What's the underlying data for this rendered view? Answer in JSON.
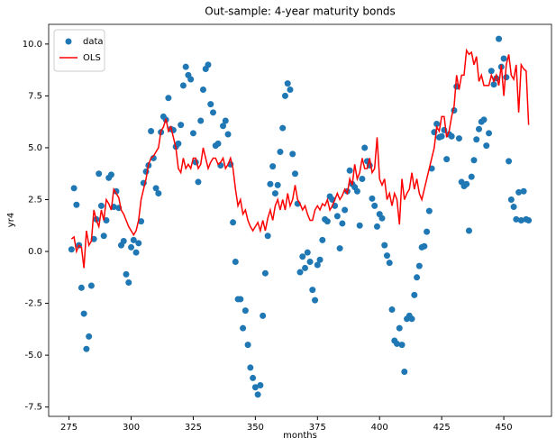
{
  "chart_data": {
    "type": "line",
    "title": "Out-sample: 4-year maturity bonds",
    "x_label": "months",
    "y_label": "yr4",
    "x": [
      276,
      277,
      278,
      279,
      280,
      281,
      282,
      283,
      284,
      285,
      286,
      287,
      288,
      289,
      290,
      291,
      292,
      293,
      294,
      295,
      296,
      297,
      298,
      299,
      300,
      301,
      302,
      303,
      304,
      305,
      306,
      307,
      308,
      309,
      310,
      311,
      312,
      313,
      314,
      315,
      316,
      317,
      318,
      319,
      320,
      321,
      322,
      323,
      324,
      325,
      326,
      327,
      328,
      329,
      330,
      331,
      332,
      333,
      334,
      335,
      336,
      337,
      338,
      339,
      340,
      341,
      342,
      343,
      344,
      345,
      346,
      347,
      348,
      349,
      350,
      351,
      352,
      353,
      354,
      355,
      356,
      357,
      358,
      359,
      360,
      361,
      362,
      363,
      364,
      365,
      366,
      367,
      368,
      369,
      370,
      371,
      372,
      373,
      374,
      375,
      376,
      377,
      378,
      379,
      380,
      381,
      382,
      383,
      384,
      385,
      386,
      387,
      388,
      389,
      390,
      391,
      392,
      393,
      394,
      395,
      396,
      397,
      398,
      399,
      400,
      401,
      402,
      403,
      404,
      405,
      406,
      407,
      408,
      409,
      410,
      411,
      412,
      413,
      414,
      415,
      416,
      417,
      418,
      419,
      420,
      421,
      422,
      423,
      424,
      425,
      426,
      427,
      428,
      429,
      430,
      431,
      432,
      433,
      434,
      435,
      436,
      437,
      438,
      439,
      440,
      441,
      442,
      443,
      444,
      445,
      446,
      447,
      448,
      449,
      450,
      451,
      452,
      453,
      454,
      455,
      456,
      457,
      458,
      459,
      460
    ],
    "series": [
      {
        "name": "data",
        "color": "#1f77b4",
        "style": "markers",
        "values": [
          0.1,
          3.05,
          2.25,
          0.3,
          -1.75,
          -3.0,
          -4.7,
          -4.1,
          -1.65,
          0.6,
          1.55,
          3.75,
          2.2,
          0.75,
          1.5,
          3.55,
          3.7,
          2.15,
          2.9,
          2.1,
          0.3,
          0.5,
          -1.1,
          -1.5,
          0.2,
          0.55,
          -0.05,
          0.4,
          1.45,
          3.3,
          3.85,
          4.15,
          5.8,
          4.5,
          3.05,
          2.8,
          5.75,
          6.5,
          6.35,
          7.4,
          5.9,
          5.85,
          5.05,
          5.2,
          6.1,
          8.0,
          8.9,
          8.5,
          8.3,
          5.7,
          4.3,
          3.35,
          6.3,
          7.8,
          8.8,
          9.0,
          7.1,
          6.7,
          5.1,
          5.2,
          4.15,
          6.05,
          6.3,
          5.65,
          4.2,
          1.4,
          -0.5,
          -2.3,
          -2.3,
          -3.7,
          -2.85,
          -4.5,
          -5.6,
          -6.1,
          -6.55,
          -6.9,
          -6.45,
          -3.1,
          -1.05,
          0.75,
          3.25,
          4.1,
          2.8,
          3.2,
          4.8,
          5.95,
          7.5,
          8.1,
          7.8,
          4.7,
          3.75,
          2.3,
          -1.0,
          -0.25,
          -0.8,
          -0.05,
          -0.5,
          -1.85,
          -2.35,
          -0.65,
          -0.4,
          0.55,
          1.55,
          1.45,
          2.65,
          2.5,
          2.2,
          1.7,
          0.15,
          1.35,
          2.0,
          2.9,
          3.9,
          3.25,
          3.1,
          2.9,
          1.25,
          3.5,
          5.0,
          4.35,
          4.15,
          2.55,
          2.2,
          1.2,
          1.8,
          1.6,
          0.3,
          -0.2,
          -0.55,
          -2.8,
          -4.3,
          -4.45,
          -3.7,
          -4.5,
          -5.8,
          -3.25,
          -3.1,
          -3.25,
          -2.1,
          -1.25,
          -0.7,
          0.2,
          0.25,
          0.95,
          1.95,
          4.0,
          5.75,
          6.15,
          5.5,
          5.55,
          5.85,
          4.45,
          5.65,
          5.55,
          6.8,
          7.95,
          5.45,
          3.35,
          3.15,
          3.25,
          1.0,
          3.6,
          4.4,
          5.4,
          5.9,
          6.25,
          6.35,
          5.1,
          5.7,
          8.7,
          8.05,
          8.35,
          10.25,
          8.9,
          9.3,
          8.4,
          4.35,
          2.5,
          2.15,
          1.55,
          2.85,
          1.5,
          2.9,
          1.55,
          1.5
        ]
      },
      {
        "name": "OLS",
        "color": "#ff0000",
        "style": "line",
        "values": [
          0.6,
          0.7,
          0.0,
          0.3,
          0.2,
          -0.8,
          1.0,
          0.3,
          0.5,
          2.0,
          1.5,
          1.2,
          2.0,
          1.5,
          2.5,
          2.3,
          2.0,
          3.0,
          2.8,
          2.6,
          2.0,
          1.8,
          1.5,
          1.2,
          1.0,
          0.8,
          1.0,
          1.5,
          2.5,
          3.0,
          3.5,
          4.2,
          4.5,
          4.6,
          4.8,
          5.0,
          5.8,
          6.0,
          6.4,
          5.8,
          6.0,
          5.5,
          5.0,
          4.0,
          3.8,
          4.5,
          4.0,
          4.2,
          4.0,
          4.5,
          4.5,
          4.0,
          4.2,
          5.0,
          4.5,
          4.0,
          4.3,
          4.5,
          4.5,
          4.2,
          4.3,
          4.5,
          4.0,
          4.2,
          4.5,
          4.0,
          3.0,
          2.2,
          2.5,
          1.8,
          2.0,
          1.5,
          1.2,
          1.0,
          1.2,
          1.4,
          1.0,
          1.5,
          1.0,
          1.6,
          2.0,
          1.5,
          2.2,
          2.5,
          2.0,
          2.5,
          2.0,
          2.8,
          2.2,
          2.5,
          3.2,
          2.5,
          2.3,
          2.0,
          2.2,
          1.8,
          1.5,
          1.5,
          2.0,
          2.2,
          2.0,
          2.3,
          2.2,
          2.5,
          2.0,
          2.2,
          2.5,
          2.8,
          2.5,
          2.7,
          3.0,
          2.8,
          3.5,
          3.2,
          4.2,
          3.5,
          3.8,
          4.5,
          4.0,
          4.0,
          4.5,
          3.8,
          4.0,
          5.5,
          3.5,
          3.2,
          3.5,
          2.5,
          2.8,
          2.2,
          2.8,
          2.5,
          1.3,
          3.5,
          2.5,
          2.8,
          3.0,
          3.8,
          3.0,
          3.5,
          2.8,
          2.5,
          3.0,
          3.5,
          4.0,
          4.5,
          5.0,
          6.0,
          5.8,
          6.5,
          6.5,
          5.5,
          5.8,
          6.5,
          7.0,
          8.5,
          7.8,
          8.5,
          8.5,
          9.7,
          9.5,
          9.6,
          9.0,
          9.4,
          8.2,
          8.5,
          8.0,
          8.0,
          8.0,
          8.5,
          8.2,
          8.5,
          8.0,
          9.0,
          7.5,
          9.0,
          9.5,
          8.5,
          8.3,
          9.0,
          6.7,
          9.0,
          8.8,
          8.7,
          6.1
        ]
      }
    ],
    "xlim": [
      266.8,
      469.2
    ],
    "ylim": [
      -7.95,
      10.95
    ],
    "xticks": [
      275,
      300,
      325,
      350,
      375,
      400,
      425,
      450
    ],
    "yticks": [
      -7.5,
      {
        "value": -5,
        "label": "-5.0"
      },
      -2.5,
      {
        "value": 0,
        "label": "0.0"
      },
      2.5,
      {
        "value": 5,
        "label": "5.0"
      },
      7.5,
      {
        "value": 10,
        "label": "10.0"
      }
    ],
    "grid": false,
    "legend": "upper left"
  }
}
